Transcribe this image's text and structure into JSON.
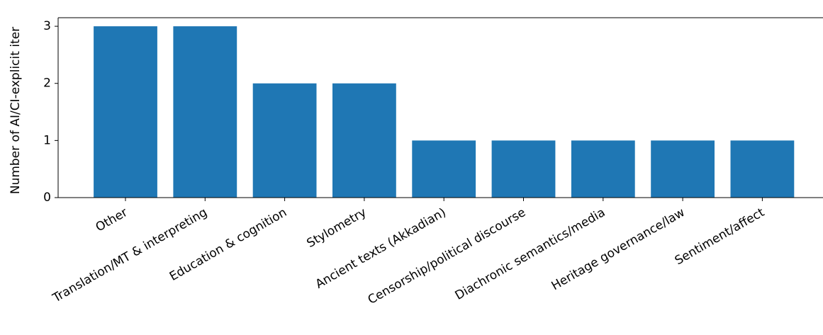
{
  "chart_data": {
    "type": "bar",
    "title": "",
    "xlabel": "",
    "ylabel": "Number of AI/CI-explicit iter",
    "categories": [
      "Other",
      "Translation/MT & interpreting",
      "Education & cognition",
      "Stylometry",
      "Ancient texts (Akkadian)",
      "Censorship/political discourse",
      "Diachronic semantics/media",
      "Heritage governance/law",
      "Sentiment/affect"
    ],
    "values": [
      3,
      3,
      2,
      2,
      1,
      1,
      1,
      1,
      1
    ],
    "ylim": [
      0,
      3.15
    ],
    "yticks": [
      0,
      1,
      2,
      3
    ],
    "bar_color": "#1f77b4",
    "grid": false,
    "legend": "none"
  }
}
